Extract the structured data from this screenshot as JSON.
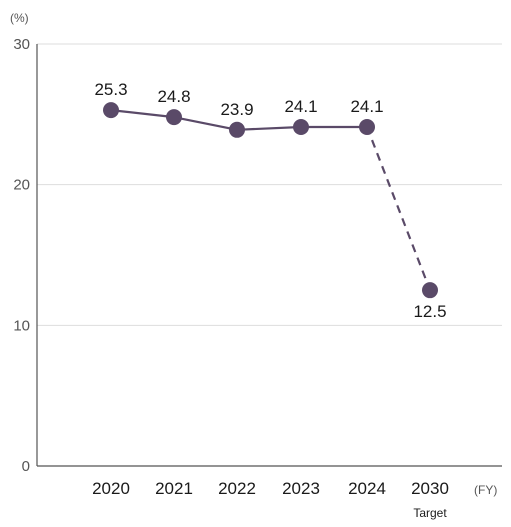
{
  "chart_data": {
    "type": "line",
    "categories": [
      "2020",
      "2021",
      "2022",
      "2023",
      "2024",
      "2030"
    ],
    "category_sublabels": [
      "",
      "",
      "",
      "",
      "",
      "Target"
    ],
    "values": [
      25.3,
      24.8,
      23.9,
      24.1,
      24.1,
      12.5
    ],
    "data_labels": [
      "25.3",
      "24.8",
      "23.9",
      "24.1",
      "24.1",
      "12.5"
    ],
    "projected_from_index": 4,
    "ylabel": "(%)",
    "xlabel": "(FY)",
    "ylim": [
      0,
      30
    ],
    "yticks": [
      0,
      10,
      20,
      30
    ],
    "ytick_labels": [
      "0",
      "10",
      "20",
      "30"
    ],
    "grid": true,
    "colors": {
      "series": "#5a4a68",
      "grid": "#dddddd",
      "axis": "#555555"
    }
  }
}
